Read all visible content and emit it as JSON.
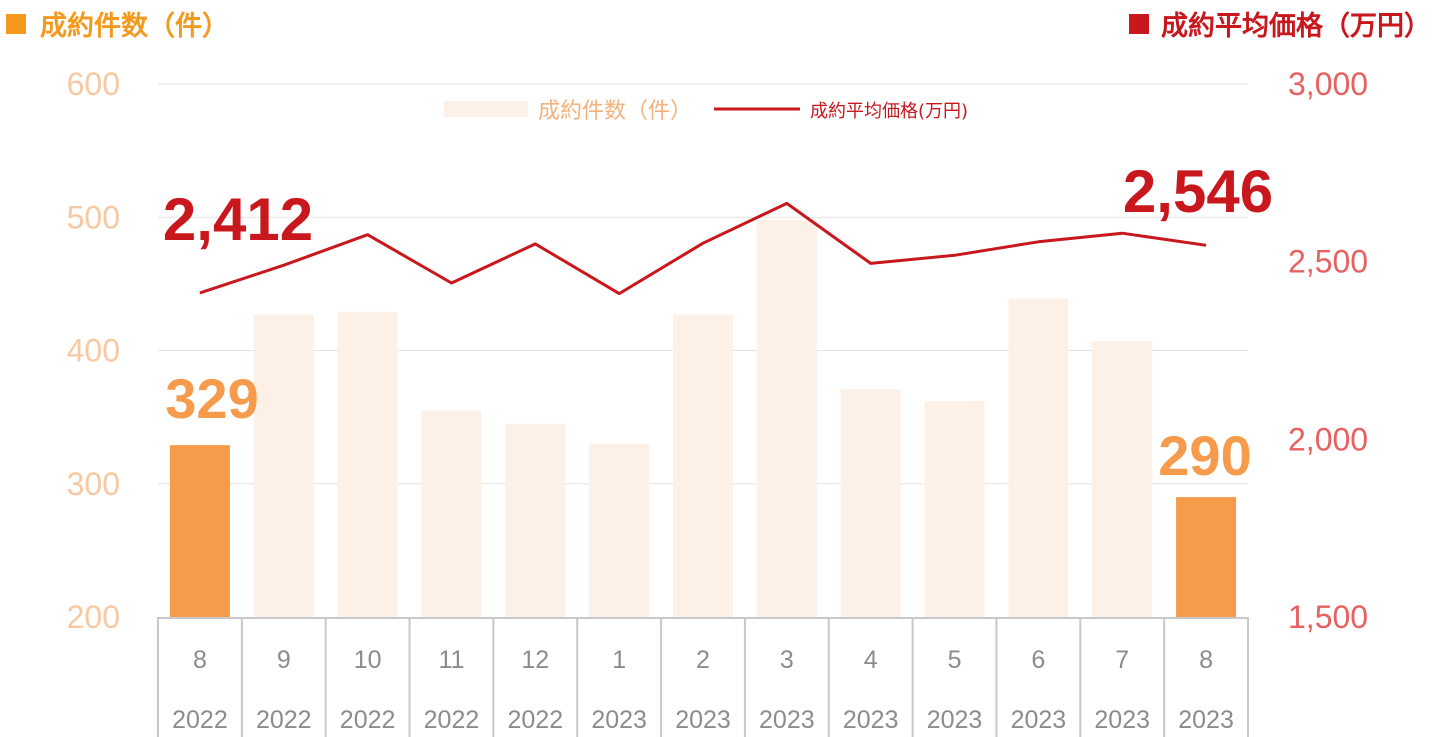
{
  "header": {
    "left_legend": "成約件数（件）",
    "right_legend": "成約平均価格（万円）"
  },
  "colors": {
    "bar_highlight": "#f59b4b",
    "bar_muted": "#fdf0e6",
    "line": "#c8171d",
    "left_axis_text": "#f7c9a2",
    "right_axis_text": "#e8605f",
    "left_legend": "#f39a1e",
    "right_legend": "#c8171d",
    "callout_count": "#f59b4b",
    "callout_price": "#c8171d",
    "grid": "#e3e3e3",
    "category_text": "#8c8c8c"
  },
  "chart_data": {
    "type": "bar",
    "categories": [
      "8",
      "9",
      "10",
      "11",
      "12",
      "1",
      "2",
      "3",
      "4",
      "5",
      "6",
      "7",
      "8"
    ],
    "years": [
      "2022",
      "2022",
      "2022",
      "2022",
      "2022",
      "2023",
      "2023",
      "2023",
      "2023",
      "2023",
      "2023",
      "2023",
      "2023"
    ],
    "series": [
      {
        "name": "成約件数（件）",
        "type": "bar",
        "axis": "left",
        "values": [
          329,
          427,
          429,
          355,
          345,
          330,
          427,
          498,
          371,
          362,
          439,
          407,
          290
        ],
        "highlight": [
          true,
          false,
          false,
          false,
          false,
          false,
          false,
          false,
          false,
          false,
          false,
          false,
          true
        ]
      },
      {
        "name": "成約平均価格(万円)",
        "type": "line",
        "axis": "right",
        "values": [
          2412,
          2490,
          2576,
          2440,
          2550,
          2410,
          2552,
          2664,
          2495,
          2518,
          2556,
          2580,
          2546
        ]
      }
    ],
    "left_axis": {
      "ticks": [
        "600",
        "500",
        "400",
        "300",
        "200"
      ],
      "min": 200,
      "max": 600
    },
    "right_axis": {
      "ticks": [
        "3,000",
        "2,500",
        "2,000",
        "1,500"
      ],
      "min": 1500,
      "max": 3000
    },
    "callouts": [
      {
        "text": "2,412",
        "series": "price",
        "index": 0
      },
      {
        "text": "2,546",
        "series": "price",
        "index": 12
      },
      {
        "text": "329",
        "series": "count",
        "index": 0
      },
      {
        "text": "290",
        "series": "count",
        "index": 12
      }
    ],
    "grid": true,
    "legend_position": "top-center"
  }
}
